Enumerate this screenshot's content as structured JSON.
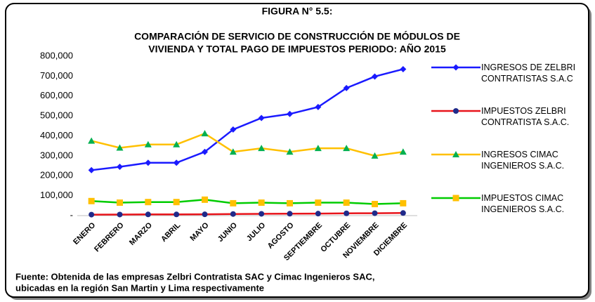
{
  "chart_data": {
    "type": "line",
    "figure_label": "FIGURA N° 5.5:",
    "title": [
      "COMPARACIÓN  DE SERVICIO DE  CONSTRUCCIÓN DE MÓDULOS DE",
      "VIVIENDA Y TOTAL PAGO DE IMPUESTOS PERIODO: AÑO 2015"
    ],
    "categories": [
      "ENERO",
      "FEBRERO",
      "MARZO",
      "ABRIL",
      "MAYO",
      "JUNIO",
      "JULIO",
      "AGOSTO",
      "SEPTIEMBRE",
      "OCTUBRE",
      "NOVIEMBRE",
      "DICIEMBRE"
    ],
    "series": [
      {
        "name": "INGRESOS DE ZELBRI CONTRATISTAS S.A.C",
        "color": "#1a1aff",
        "marker": "diamond",
        "marker_color": "#1a1aff",
        "values": [
          228000,
          245000,
          265000,
          265000,
          320000,
          432000,
          490000,
          510000,
          545000,
          640000,
          698000,
          735000
        ]
      },
      {
        "name": "IMPUESTOS ZELBRI CONTRATISTA S.A.C.",
        "color": "#e8141b",
        "marker": "circle",
        "marker_color": "#1f2a8a",
        "values": [
          5000,
          5500,
          6000,
          6000,
          6500,
          8000,
          9000,
          9500,
          10000,
          11500,
          12000,
          13000
        ]
      },
      {
        "name": "INGRESOS CIMAC INGENIEROS S.A.C.",
        "color": "#ffc000",
        "marker": "triangle",
        "marker_color": "#00b050",
        "values": [
          375000,
          340000,
          357000,
          357000,
          412000,
          320000,
          338000,
          320000,
          338000,
          338000,
          300000,
          320000
        ]
      },
      {
        "name": "IMPUESTOS CIMAC INGENIEROS S.A.C.",
        "color": "#00cc00",
        "marker": "square",
        "marker_color": "#ffc000",
        "values": [
          73000,
          65000,
          68000,
          68000,
          80000,
          62000,
          65000,
          62000,
          65000,
          65000,
          58000,
          62000
        ]
      }
    ],
    "ylim": [
      0,
      800000
    ],
    "yticks": [
      {
        "value": 0,
        "label": "-"
      },
      {
        "value": 100000,
        "label": "100,000"
      },
      {
        "value": 200000,
        "label": "200,000"
      },
      {
        "value": 300000,
        "label": "300,000"
      },
      {
        "value": 400000,
        "label": "400,000"
      },
      {
        "value": 500000,
        "label": "500,000"
      },
      {
        "value": 600000,
        "label": "600,000"
      },
      {
        "value": 700000,
        "label": "700,000"
      },
      {
        "value": 800000,
        "label": "800,000"
      }
    ],
    "grid": false,
    "legend": "right",
    "source": [
      "Fuente: Obtenida de las empresas Zelbri Contratista SAC y Cimac Ingenieros SAC,",
      "ubicadas en la región San Martin y Lima respectivamente"
    ]
  }
}
